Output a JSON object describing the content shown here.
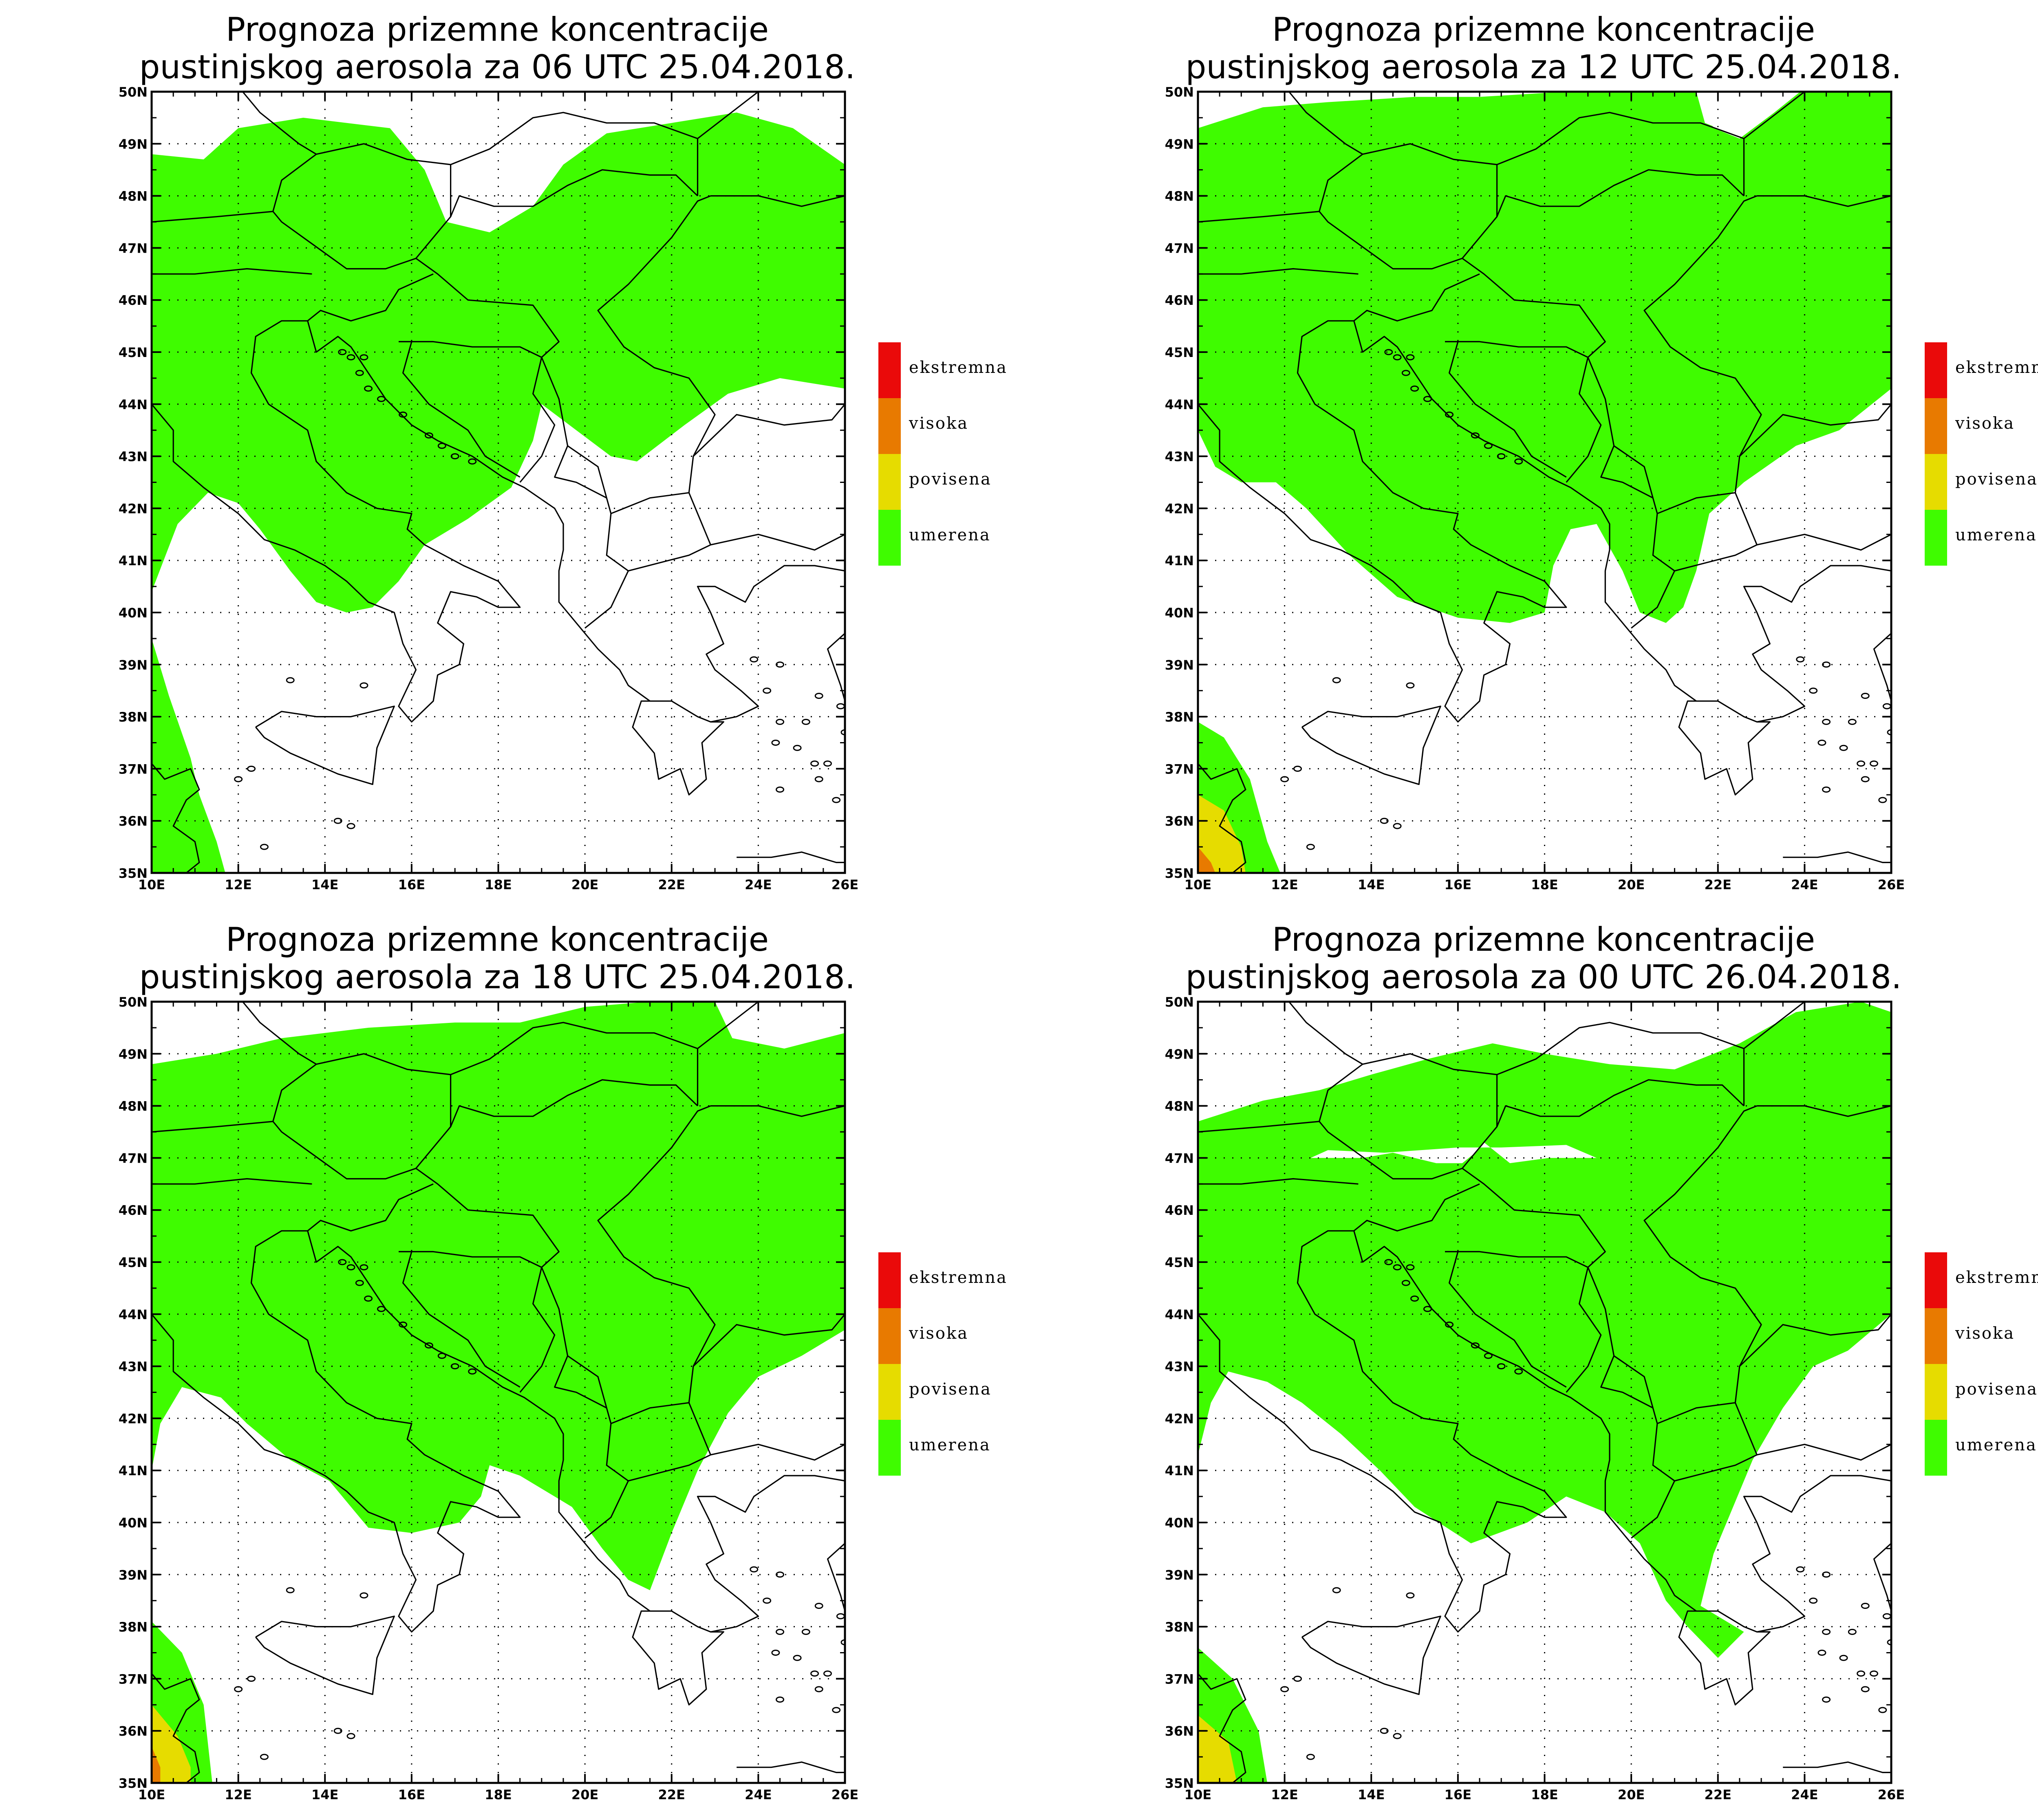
{
  "colors": {
    "umerena": "#3ffc00",
    "povisena": "#e6dc00",
    "visoka": "#e87a00",
    "ekstremna": "#ea0a0a",
    "borders": "#000000",
    "background": "#ffffff"
  },
  "legend": [
    {
      "label": "ekstremna",
      "color": "#ea0a0a"
    },
    {
      "label": "visoka",
      "color": "#e87a00"
    },
    {
      "label": "povisena",
      "color": "#e6dc00"
    },
    {
      "label": "umerena",
      "color": "#3ffc00"
    }
  ],
  "axes": {
    "lat_labels": [
      "50N",
      "49N",
      "48N",
      "47N",
      "46N",
      "45N",
      "44N",
      "43N",
      "42N",
      "41N",
      "40N",
      "39N",
      "38N",
      "37N",
      "36N",
      "35N"
    ],
    "lon_labels": [
      "10E",
      "12E",
      "14E",
      "16E",
      "18E",
      "20E",
      "22E",
      "24E",
      "26E"
    ],
    "lon_range": [
      10,
      26
    ],
    "lat_range": [
      35,
      50
    ]
  },
  "panels": [
    {
      "title_line1": "Prognoza prizemne koncentracije",
      "title_line2": "pustinjskog aerosola za 06 UTC 25.04.2018."
    },
    {
      "title_line1": "Prognoza prizemne koncentracije",
      "title_line2": "pustinjskog aerosola za 12 UTC 25.04.2018."
    },
    {
      "title_line1": "Prognoza prizemne koncentracije",
      "title_line2": "pustinjskog aerosola za 18 UTC 25.04.2018."
    },
    {
      "title_line1": "Prognoza prizemne koncentracije",
      "title_line2": "pustinjskog aerosola za 00 UTC 26.04.2018."
    }
  ]
}
